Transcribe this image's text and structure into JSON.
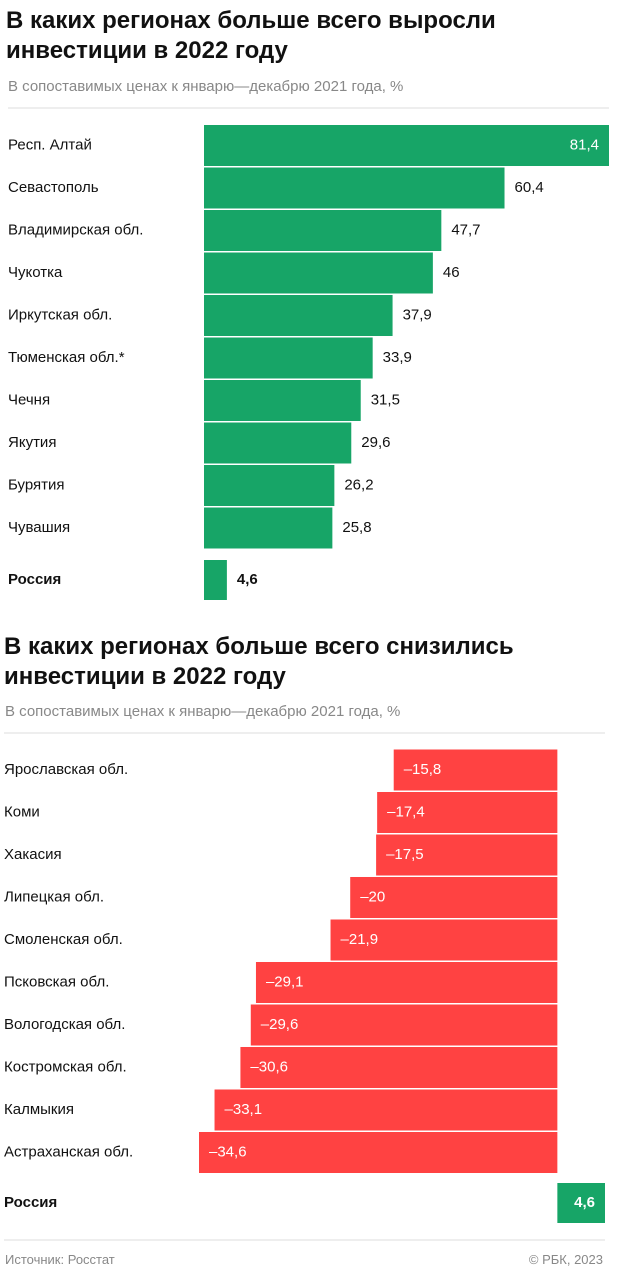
{
  "chart_data": [
    {
      "type": "hbar",
      "title": "В каких регионах больше всего выросли инвестиции в 2022 году",
      "subtitle": "В сопоставимых ценах к январю—декабрю 2021 года, %",
      "categories": [
        "Респ. Алтай",
        "Севастополь",
        "Владимирская обл.",
        "Чукотка",
        "Иркутская обл.",
        "Тюменская обл.*",
        "Чечня",
        "Якутия",
        "Бурятия",
        "Чувашия",
        "Россия"
      ],
      "values": [
        81.4,
        60.4,
        47.7,
        46,
        37.9,
        33.9,
        31.5,
        29.6,
        26.2,
        25.8,
        4.6
      ],
      "value_labels": [
        "81,4",
        "60,4",
        "47,7",
        "46",
        "37,9",
        "33,9",
        "31,5",
        "29,6",
        "26,2",
        "25,8",
        "4,6"
      ],
      "positive_color": "#17a567",
      "highlight_index": 10
    },
    {
      "type": "hbar",
      "title": "В каких регионах больше всего снизились инвестиции в 2022 году",
      "subtitle": "В сопоставимых ценах к январю—декабрю 2021 года, %",
      "categories": [
        "Ярославская обл.",
        "Коми",
        "Хакасия",
        "Липецкая обл.",
        "Смоленская обл.",
        "Псковская обл.",
        "Вологодская обл.",
        "Костромская обл.",
        "Калмыкия",
        "Астраханская обл.",
        "Россия"
      ],
      "values": [
        -15.8,
        -17.4,
        -17.5,
        -20,
        -21.9,
        -29.1,
        -29.6,
        -30.6,
        -33.1,
        -34.6,
        4.6
      ],
      "value_labels": [
        "–15,8",
        "–17,4",
        "–17,5",
        "–20",
        "–21,9",
        "–29,1",
        "–29,6",
        "–30,6",
        "–33,1",
        "–34,6",
        "4,6"
      ],
      "positive_color": "#17a567",
      "negative_color": "#ff4242",
      "highlight_index": 10
    }
  ],
  "source": "Источник: Росстат",
  "copyright": "© РБК, 2023"
}
